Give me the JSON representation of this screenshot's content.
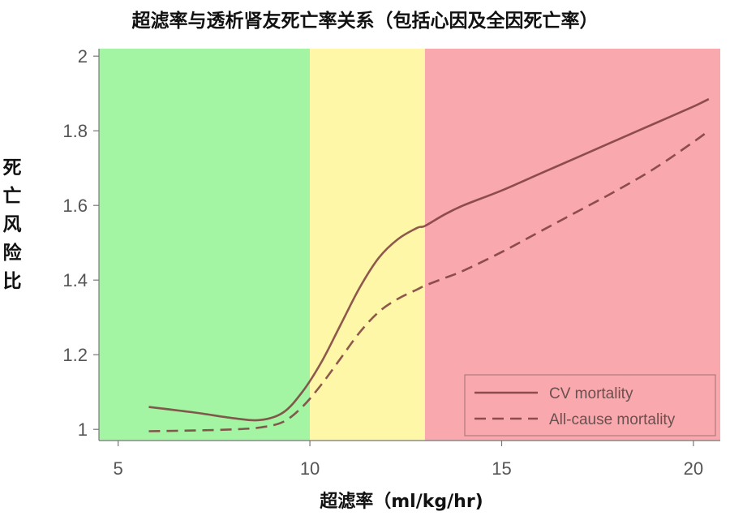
{
  "chart_data": {
    "type": "line",
    "title": "超滤率与透析肾友死亡率关系（包括心因及全因死亡率）",
    "xlabel": "超滤率（ml/kg/hr)",
    "ylabel": "死亡风险比",
    "xlim": [
      4.5,
      20.7
    ],
    "ylim": [
      0.97,
      2.02
    ],
    "x_ticks": [
      "5",
      "10",
      "15",
      "20"
    ],
    "y_ticks": [
      "1",
      "1.2",
      "1.4",
      "1.6",
      "1.8",
      "2"
    ],
    "regions": [
      {
        "name": "low",
        "from": 4.5,
        "to": 10,
        "color": "#a3f5a3"
      },
      {
        "name": "mid",
        "from": 10,
        "to": 13,
        "color": "#fff7a8"
      },
      {
        "name": "high",
        "from": 13,
        "to": 20.7,
        "color": "#f9a8ad"
      }
    ],
    "series": [
      {
        "name": "CV mortality",
        "style": "solid",
        "color": "#7a3c3c",
        "x": [
          5.8,
          7.0,
          8.0,
          8.7,
          9.3,
          9.8,
          10.3,
          10.8,
          11.3,
          11.8,
          12.3,
          12.8,
          13.0,
          13.5,
          14.0,
          15.0,
          16.0,
          17.0,
          18.0,
          19.0,
          20.0,
          20.4
        ],
        "y": [
          1.06,
          1.045,
          1.03,
          1.025,
          1.045,
          1.1,
          1.18,
          1.28,
          1.38,
          1.46,
          1.51,
          1.54,
          1.545,
          1.575,
          1.6,
          1.64,
          1.685,
          1.73,
          1.775,
          1.82,
          1.865,
          1.885
        ]
      },
      {
        "name": "All-cause mortality",
        "style": "dashed",
        "color": "#7a3c3c",
        "x": [
          5.8,
          7.0,
          8.0,
          8.7,
          9.3,
          9.8,
          10.3,
          10.8,
          11.3,
          11.8,
          12.3,
          12.8,
          13.0,
          13.5,
          14.0,
          15.0,
          16.0,
          17.0,
          18.0,
          19.0,
          20.0,
          20.4
        ],
        "y": [
          0.995,
          0.997,
          1.0,
          1.005,
          1.02,
          1.06,
          1.12,
          1.19,
          1.26,
          1.315,
          1.35,
          1.375,
          1.385,
          1.405,
          1.425,
          1.475,
          1.53,
          1.585,
          1.64,
          1.7,
          1.77,
          1.8
        ]
      }
    ],
    "legend": {
      "position": "bottom-right",
      "entries": [
        "CV mortality",
        "All-cause mortality"
      ]
    },
    "grid": false
  }
}
